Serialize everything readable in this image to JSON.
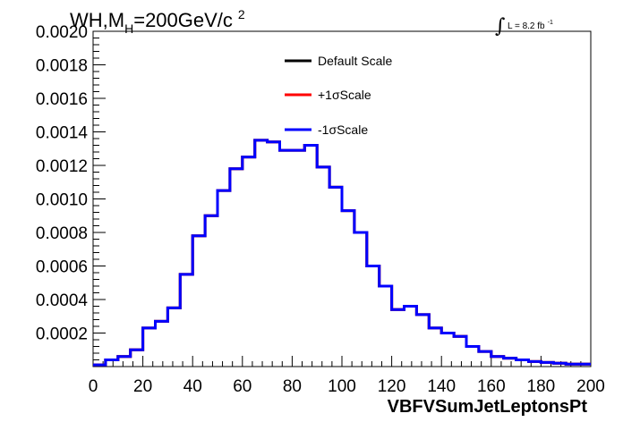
{
  "chart_data": {
    "type": "line",
    "title": "WH,M",
    "title_subscript": "H",
    "title_rest": "=200GeV/c",
    "title_superscript": "2",
    "luminosity_label": "L = 8.2 fb",
    "luminosity_superscript": "-1",
    "xlabel": "VBFVSumJetLeptonsPt",
    "ylabel": "",
    "xlim": [
      0,
      200
    ],
    "ylim": [
      0,
      0.002
    ],
    "x_ticks": [
      "0",
      "20",
      "40",
      "60",
      "80",
      "100",
      "120",
      "140",
      "160",
      "180",
      "200"
    ],
    "y_ticks": [
      "0.0002",
      "0.0004",
      "0.0006",
      "0.0008",
      "0.0010",
      "0.0012",
      "0.0014",
      "0.0016",
      "0.0018",
      "0.0020"
    ],
    "bin_width": 5,
    "bin_edges_start": 0,
    "legend": {
      "position": "top-right",
      "entries": [
        {
          "name": "Default Scale",
          "color": "#000000"
        },
        {
          "name": "+1σScale",
          "color": "#ff0000"
        },
        {
          "name": "-1σScale",
          "color": "#0000ff"
        }
      ]
    },
    "series": [
      {
        "name": "Default Scale",
        "color": "#000000",
        "values": [
          1e-05,
          4e-05,
          6e-05,
          0.0001,
          0.00023,
          0.00027,
          0.00035,
          0.00055,
          0.00078,
          0.0009,
          0.00105,
          0.00118,
          0.00125,
          0.00135,
          0.00134,
          0.00129,
          0.00129,
          0.00132,
          0.00119,
          0.00107,
          0.00093,
          0.0008,
          0.0006,
          0.00048,
          0.00034,
          0.00036,
          0.00031,
          0.00023,
          0.0002,
          0.00018,
          0.00012,
          9e-05,
          6e-05,
          5e-05,
          4e-05,
          3e-05,
          2.5e-05,
          2e-05,
          1.5e-05,
          1.5e-05
        ]
      },
      {
        "name": "+1σScale",
        "color": "#ff0000",
        "values": [
          1e-05,
          4e-05,
          6e-05,
          0.0001,
          0.00023,
          0.00027,
          0.00035,
          0.00055,
          0.00078,
          0.0009,
          0.00105,
          0.00118,
          0.00125,
          0.00135,
          0.00134,
          0.00129,
          0.00129,
          0.00132,
          0.00119,
          0.00107,
          0.00093,
          0.0008,
          0.0006,
          0.00048,
          0.00034,
          0.00036,
          0.00031,
          0.00023,
          0.0002,
          0.00018,
          0.00012,
          9e-05,
          6e-05,
          5e-05,
          4e-05,
          3e-05,
          2.5e-05,
          2e-05,
          1.5e-05,
          1.5e-05
        ]
      },
      {
        "name": "-1σScale",
        "color": "#0000ff",
        "values": [
          1e-05,
          4e-05,
          6e-05,
          0.0001,
          0.00023,
          0.00027,
          0.00035,
          0.00055,
          0.00078,
          0.0009,
          0.00105,
          0.00118,
          0.00125,
          0.00135,
          0.00134,
          0.00129,
          0.00129,
          0.00132,
          0.00119,
          0.00107,
          0.00093,
          0.0008,
          0.0006,
          0.00048,
          0.00034,
          0.00036,
          0.00031,
          0.00023,
          0.0002,
          0.00018,
          0.00012,
          9e-05,
          6e-05,
          5e-05,
          4e-05,
          3e-05,
          2.5e-05,
          2e-05,
          1.5e-05,
          1.5e-05
        ]
      }
    ],
    "grid": false
  }
}
